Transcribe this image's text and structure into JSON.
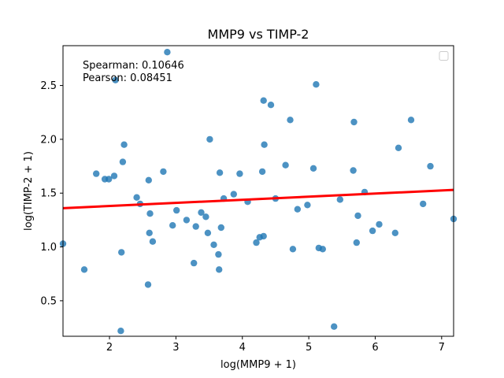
{
  "chart_data": {
    "type": "scatter",
    "title": "MMP9 vs TIMP-2",
    "xlabel": "log(MMP9 + 1)",
    "ylabel": "log(TIMP-2 + 1)",
    "xlim": [
      1.3,
      7.18
    ],
    "ylim": [
      0.17,
      2.87
    ],
    "xticks": [
      "2",
      "3",
      "4",
      "5",
      "6",
      "7"
    ],
    "yticks": [
      "0.5",
      "1.0",
      "1.5",
      "2.0",
      "2.5"
    ],
    "grid": false,
    "legend": "top-right (empty)",
    "annotations": [
      "Spearman: 0.10646",
      "Pearson: 0.08451"
    ],
    "point_color": "#1f77b4",
    "fit_color": "#ff0000",
    "fit_line": {
      "x": [
        1.3,
        7.18
      ],
      "y": [
        1.36,
        1.53
      ]
    },
    "points": [
      {
        "x": 1.3,
        "y": 1.03
      },
      {
        "x": 1.62,
        "y": 0.79
      },
      {
        "x": 1.8,
        "y": 1.68
      },
      {
        "x": 1.93,
        "y": 1.63
      },
      {
        "x": 1.99,
        "y": 1.63
      },
      {
        "x": 2.07,
        "y": 1.66
      },
      {
        "x": 2.09,
        "y": 2.55
      },
      {
        "x": 2.17,
        "y": 0.22
      },
      {
        "x": 2.18,
        "y": 0.95
      },
      {
        "x": 2.2,
        "y": 1.79
      },
      {
        "x": 2.22,
        "y": 1.95
      },
      {
        "x": 2.41,
        "y": 1.46
      },
      {
        "x": 2.46,
        "y": 1.4
      },
      {
        "x": 2.58,
        "y": 0.65
      },
      {
        "x": 2.59,
        "y": 1.62
      },
      {
        "x": 2.6,
        "y": 1.13
      },
      {
        "x": 2.61,
        "y": 1.31
      },
      {
        "x": 2.65,
        "y": 1.05
      },
      {
        "x": 2.81,
        "y": 1.7
      },
      {
        "x": 2.87,
        "y": 2.81
      },
      {
        "x": 2.95,
        "y": 1.2
      },
      {
        "x": 3.01,
        "y": 1.34
      },
      {
        "x": 3.16,
        "y": 1.25
      },
      {
        "x": 3.27,
        "y": 0.85
      },
      {
        "x": 3.3,
        "y": 1.19
      },
      {
        "x": 3.38,
        "y": 1.32
      },
      {
        "x": 3.45,
        "y": 1.28
      },
      {
        "x": 3.48,
        "y": 1.13
      },
      {
        "x": 3.51,
        "y": 2.0
      },
      {
        "x": 3.57,
        "y": 1.02
      },
      {
        "x": 3.64,
        "y": 0.93
      },
      {
        "x": 3.65,
        "y": 0.79
      },
      {
        "x": 3.66,
        "y": 1.69
      },
      {
        "x": 3.68,
        "y": 1.18
      },
      {
        "x": 3.72,
        "y": 1.45
      },
      {
        "x": 3.87,
        "y": 1.49
      },
      {
        "x": 3.96,
        "y": 1.68
      },
      {
        "x": 4.08,
        "y": 1.42
      },
      {
        "x": 4.21,
        "y": 1.04
      },
      {
        "x": 4.26,
        "y": 1.09
      },
      {
        "x": 4.3,
        "y": 1.7
      },
      {
        "x": 4.32,
        "y": 1.1
      },
      {
        "x": 4.32,
        "y": 2.36
      },
      {
        "x": 4.33,
        "y": 1.95
      },
      {
        "x": 4.43,
        "y": 2.32
      },
      {
        "x": 4.5,
        "y": 1.45
      },
      {
        "x": 4.65,
        "y": 1.76
      },
      {
        "x": 4.72,
        "y": 2.18
      },
      {
        "x": 4.76,
        "y": 0.98
      },
      {
        "x": 4.83,
        "y": 1.35
      },
      {
        "x": 4.98,
        "y": 1.39
      },
      {
        "x": 5.07,
        "y": 1.73
      },
      {
        "x": 5.11,
        "y": 2.51
      },
      {
        "x": 5.15,
        "y": 0.99
      },
      {
        "x": 5.21,
        "y": 0.98
      },
      {
        "x": 5.38,
        "y": 0.26
      },
      {
        "x": 5.47,
        "y": 1.44
      },
      {
        "x": 5.67,
        "y": 1.71
      },
      {
        "x": 5.68,
        "y": 2.16
      },
      {
        "x": 5.72,
        "y": 1.04
      },
      {
        "x": 5.74,
        "y": 1.29
      },
      {
        "x": 5.84,
        "y": 1.51
      },
      {
        "x": 5.96,
        "y": 1.15
      },
      {
        "x": 6.06,
        "y": 1.21
      },
      {
        "x": 6.3,
        "y": 1.13
      },
      {
        "x": 6.35,
        "y": 1.92
      },
      {
        "x": 6.54,
        "y": 2.18
      },
      {
        "x": 6.72,
        "y": 1.4
      },
      {
        "x": 6.83,
        "y": 1.75
      },
      {
        "x": 7.18,
        "y": 1.26
      }
    ]
  }
}
